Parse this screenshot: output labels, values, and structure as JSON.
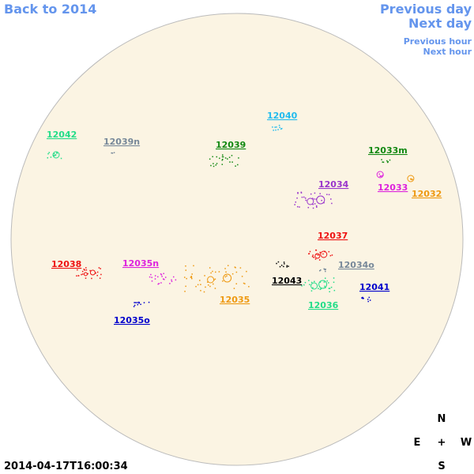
{
  "nav": {
    "back": "Back to 2014",
    "previous_day": "Previous day",
    "next_day": "Next day",
    "previous_hour": "Previous hour",
    "next_hour": "Next hour"
  },
  "regions": [
    {
      "label": "12042",
      "color": "#22dd88"
    },
    {
      "label": "12039n",
      "color": "#778899"
    },
    {
      "label": "12039",
      "color": "#118811"
    },
    {
      "label": "12040",
      "color": "#22bbee"
    },
    {
      "label": "12033m",
      "color": "#118811"
    },
    {
      "label": "12034",
      "color": "#9933cc"
    },
    {
      "label": "12033",
      "color": "#dd22dd"
    },
    {
      "label": "12032",
      "color": "#ee9911"
    },
    {
      "label": "12037",
      "color": "#ee1111"
    },
    {
      "label": "12038",
      "color": "#ee1111"
    },
    {
      "label": "12035n",
      "color": "#dd22dd"
    },
    {
      "label": "12034o",
      "color": "#778899"
    },
    {
      "label": "12043",
      "color": "#000000"
    },
    {
      "label": "12041",
      "color": "#0000cc"
    },
    {
      "label": "12035",
      "color": "#ee9911"
    },
    {
      "label": "12036",
      "color": "#22dd88"
    },
    {
      "label": "12035o",
      "color": "#0000cc"
    }
  ],
  "compass": {
    "n": "N",
    "e": "E",
    "center": "+",
    "w": "W",
    "s": "S"
  },
  "timestamp": "2014-04-17T16:00:34"
}
